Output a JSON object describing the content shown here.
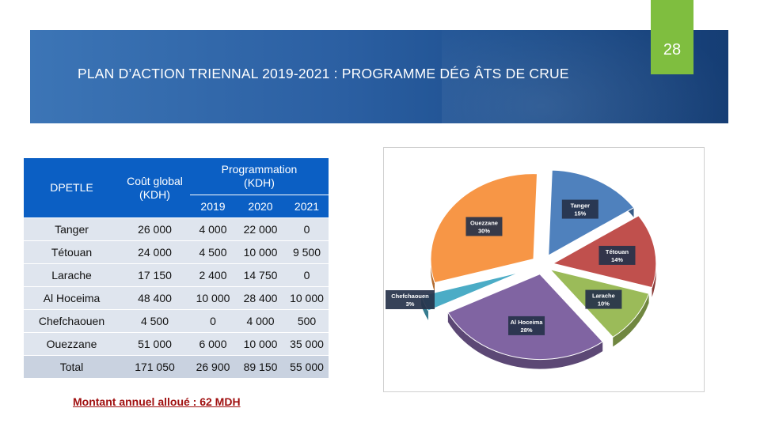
{
  "slide": {
    "title": "PLAN D’ACTION TRIENNAL 2019-2021 : PROGRAMME DÉG ÂTS DE CRUE",
    "page_number": "28",
    "note": "Montant annuel alloué : 62 MDH"
  },
  "table": {
    "headers": {
      "dpetle": "DPETLE",
      "cout_global": "Coût global (KDH)",
      "programmation": "Programmation (KDH)",
      "years": [
        "2019",
        "2020",
        "2021"
      ]
    },
    "rows": [
      {
        "name": "Tanger",
        "cout": "26 000",
        "y2019": "4 000",
        "y2020": "22 000",
        "y2021": "0"
      },
      {
        "name": "Tétouan",
        "cout": "24 000",
        "y2019": "4 500",
        "y2020": "10 000",
        "y2021": "9 500"
      },
      {
        "name": "Larache",
        "cout": "17 150",
        "y2019": "2 400",
        "y2020": "14 750",
        "y2021": "0"
      },
      {
        "name": "Al Hoceima",
        "cout": "48 400",
        "y2019": "10 000",
        "y2020": "28 400",
        "y2021": "10 000"
      },
      {
        "name": "Chefchaouen",
        "cout": "4 500",
        "y2019": "0",
        "y2020": "4 000",
        "y2021": "500"
      },
      {
        "name": "Ouezzane",
        "cout": "51 000",
        "y2019": "6 000",
        "y2020": "10 000",
        "y2021": "35 000"
      }
    ],
    "total": {
      "name": "Total",
      "cout": "171 050",
      "y2019": "26 900",
      "y2020": "89 150",
      "y2021": "55 000"
    }
  },
  "chart_data": {
    "type": "pie",
    "categories": [
      "Tanger",
      "Tétouan",
      "Larache",
      "Al Hoceima",
      "Chefchaouen",
      "Ouezzane"
    ],
    "labels": [
      "Tanger",
      "Tétouan",
      "Larache",
      "Al Hoceima",
      "Chefchaouen",
      "Ouezzane"
    ],
    "values": [
      15,
      14,
      10,
      28,
      3,
      30
    ],
    "value_labels": [
      "15%",
      "14%",
      "10%",
      "28%",
      "3%",
      "30%"
    ],
    "colors": [
      "#4f81bd",
      "#c0504d",
      "#9bbb59",
      "#8064a2",
      "#4bacc6",
      "#f79646"
    ],
    "style": "3d-exploded"
  }
}
